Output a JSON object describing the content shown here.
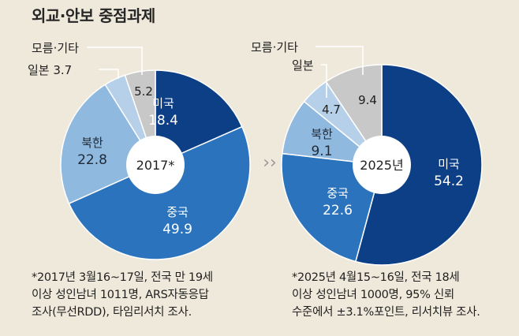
{
  "title": "외교·안보 중점과제",
  "chart_data": [
    {
      "type": "pie",
      "center_label": "2017*",
      "slices": [
        {
          "name": "미국",
          "value": 18.4,
          "label": "18.4",
          "color": "#0d3f86",
          "text_color": "#ffffff"
        },
        {
          "name": "중국",
          "value": 49.9,
          "label": "49.9",
          "color": "#2b74bd",
          "text_color": "#ffffff"
        },
        {
          "name": "북한",
          "value": 22.8,
          "label": "22.8",
          "color": "#90b9df",
          "text_color": "#1f2a38"
        },
        {
          "name": "일본",
          "value": 3.7,
          "label": "일본 3.7",
          "color": "#b6d0ea",
          "text_color": "#1f1f1f"
        },
        {
          "name": "모름·기타",
          "value": 5.2,
          "label": "5.2",
          "color": "#c8c8c8",
          "text_color": "#1f1f1f"
        }
      ],
      "footnote": [
        "*2017년 3월16~17일, 전국 만 19세",
        "이상 성인남녀 1011명, ARS자동응답",
        "조사(무선RDD), 타임리서치 조사."
      ]
    },
    {
      "type": "pie",
      "center_label": "2025년",
      "slices": [
        {
          "name": "미국",
          "value": 54.2,
          "label": "54.2",
          "color": "#0d3f86",
          "text_color": "#ffffff"
        },
        {
          "name": "중국",
          "value": 22.6,
          "label": "22.6",
          "color": "#2b74bd",
          "text_color": "#ffffff"
        },
        {
          "name": "북한",
          "value": 9.1,
          "label": "9.1",
          "color": "#90b9df",
          "text_color": "#1f2a38"
        },
        {
          "name": "일본",
          "value": 4.7,
          "label": "4.7",
          "color": "#b6d0ea",
          "text_color": "#1f1f1f"
        },
        {
          "name": "모름·기타",
          "value": 9.4,
          "label": "9.4",
          "color": "#c8c8c8",
          "text_color": "#1f1f1f"
        }
      ],
      "footnote": [
        "*2025년 4월15~16일, 전국 18세",
        "이상 성인남녀 1000명, 95% 신뢰",
        "수준에서 ±3.1%포인트, 리서치뷰 조사."
      ]
    }
  ]
}
